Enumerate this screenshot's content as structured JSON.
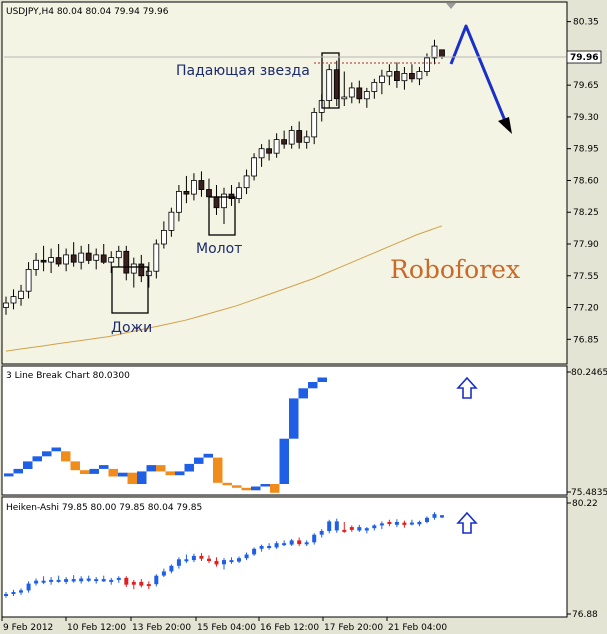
{
  "colors": {
    "background": "#f4f4e4",
    "axis": "#000000",
    "candle_up": "#ffffff",
    "candle_down": "#3a1f1f",
    "moving_average": "#d4a04a",
    "annotation_box": "#000000",
    "annotation_text": "#1c2a6e",
    "brand": "#c96a2a",
    "forecast_arrow": "#1a2fc8",
    "lb_up": "#1f5fe6",
    "lb_down": "#f08c1c",
    "ha_up": "#1f5fe6",
    "ha_down": "#e02020",
    "arrow_outline": "#1a2fc8"
  },
  "chart_data": [
    {
      "type": "candlestick",
      "title": "USDJPY,H4 80.04 80.04 79.94 79.96",
      "ylim": [
        76.6,
        80.5
      ],
      "yticks": [
        "80.35",
        "79.96",
        "79.65",
        "79.30",
        "78.95",
        "78.60",
        "78.25",
        "77.90",
        "77.55",
        "77.20",
        "76.85"
      ],
      "current_price": "79.96",
      "annotations": [
        "Падающая звезда",
        "Молот",
        "Дожи"
      ],
      "watermark": "Roboforex",
      "ohlc": [
        [
          77.2,
          77.32,
          77.12,
          77.25
        ],
        [
          77.25,
          77.4,
          77.18,
          77.32
        ],
        [
          77.3,
          77.45,
          77.22,
          77.38
        ],
        [
          77.38,
          77.7,
          77.3,
          77.62
        ],
        [
          77.62,
          77.8,
          77.55,
          77.72
        ],
        [
          77.72,
          77.88,
          77.6,
          77.7
        ],
        [
          77.7,
          77.85,
          77.58,
          77.75
        ],
        [
          77.75,
          77.9,
          77.65,
          77.68
        ],
        [
          77.68,
          77.85,
          77.6,
          77.78
        ],
        [
          77.78,
          77.92,
          77.65,
          77.7
        ],
        [
          77.7,
          77.88,
          77.62,
          77.8
        ],
        [
          77.8,
          77.9,
          77.68,
          77.72
        ],
        [
          77.72,
          77.85,
          77.62,
          77.78
        ],
        [
          77.78,
          77.9,
          77.68,
          77.7
        ],
        [
          77.7,
          77.82,
          77.58,
          77.75
        ],
        [
          77.75,
          77.88,
          77.65,
          77.82
        ],
        [
          77.82,
          77.88,
          77.5,
          77.58
        ],
        [
          77.58,
          77.75,
          77.42,
          77.68
        ],
        [
          77.68,
          77.78,
          77.48,
          77.55
        ],
        [
          77.55,
          77.7,
          77.42,
          77.6
        ],
        [
          77.6,
          77.95,
          77.52,
          77.9
        ],
        [
          77.9,
          78.15,
          77.85,
          78.05
        ],
        [
          78.05,
          78.3,
          77.98,
          78.25
        ],
        [
          78.25,
          78.55,
          78.15,
          78.48
        ],
        [
          78.48,
          78.65,
          78.35,
          78.45
        ],
        [
          78.45,
          78.68,
          78.38,
          78.6
        ],
        [
          78.6,
          78.7,
          78.42,
          78.5
        ],
        [
          78.5,
          78.62,
          78.35,
          78.42
        ],
        [
          78.42,
          78.55,
          78.22,
          78.3
        ],
        [
          78.3,
          78.52,
          78.12,
          78.45
        ],
        [
          78.45,
          78.55,
          78.32,
          78.4
        ],
        [
          78.4,
          78.58,
          78.35,
          78.52
        ],
        [
          78.52,
          78.72,
          78.45,
          78.65
        ],
        [
          78.65,
          78.9,
          78.6,
          78.85
        ],
        [
          78.85,
          79.0,
          78.75,
          78.95
        ],
        [
          78.95,
          79.05,
          78.82,
          78.9
        ],
        [
          78.9,
          79.12,
          78.85,
          79.05
        ],
        [
          79.05,
          79.15,
          78.95,
          79.0
        ],
        [
          79.0,
          79.2,
          78.95,
          79.15
        ],
        [
          79.15,
          79.25,
          78.95,
          79.02
        ],
        [
          79.02,
          79.15,
          78.95,
          79.08
        ],
        [
          79.08,
          79.4,
          79.0,
          79.35
        ],
        [
          79.35,
          79.55,
          79.25,
          79.48
        ],
        [
          79.48,
          79.88,
          79.4,
          79.82
        ],
        [
          79.82,
          79.92,
          79.42,
          79.5
        ],
        [
          79.5,
          79.8,
          79.42,
          79.52
        ],
        [
          79.52,
          79.68,
          79.45,
          79.62
        ],
        [
          79.62,
          79.7,
          79.45,
          79.5
        ],
        [
          79.5,
          79.62,
          79.4,
          79.58
        ],
        [
          79.58,
          79.72,
          79.5,
          79.68
        ],
        [
          79.68,
          79.82,
          79.55,
          79.75
        ],
        [
          79.75,
          79.88,
          79.65,
          79.8
        ],
        [
          79.8,
          79.9,
          79.62,
          79.7
        ],
        [
          79.7,
          79.85,
          79.6,
          79.78
        ],
        [
          79.78,
          79.88,
          79.68,
          79.72
        ],
        [
          79.72,
          79.85,
          79.65,
          79.8
        ],
        [
          79.8,
          80.0,
          79.75,
          79.95
        ],
        [
          79.95,
          80.15,
          79.88,
          80.08
        ],
        [
          80.04,
          80.04,
          79.94,
          79.96
        ]
      ],
      "moving_average": [
        76.72,
        76.74,
        76.76,
        76.78,
        76.8,
        76.82,
        76.84,
        76.86,
        76.88,
        76.91,
        76.94,
        76.97,
        77.0,
        77.03,
        77.06,
        77.1,
        77.14,
        77.18,
        77.22,
        77.27,
        77.32,
        77.37,
        77.42,
        77.47,
        77.52,
        77.58,
        77.64,
        77.7,
        77.76,
        77.82,
        77.88,
        77.94,
        78.0,
        78.05,
        78.1
      ]
    },
    {
      "type": "line_break",
      "title": "3 Line Break Chart 80.0300",
      "yticks": [
        "80.2465",
        "75.4835"
      ],
      "blocks": [
        {
          "dir": "up",
          "lo": 76.1,
          "hi": 76.22
        },
        {
          "dir": "up",
          "lo": 76.22,
          "hi": 76.4
        },
        {
          "dir": "up",
          "lo": 76.4,
          "hi": 76.7
        },
        {
          "dir": "up",
          "lo": 76.7,
          "hi": 76.9
        },
        {
          "dir": "up",
          "lo": 76.9,
          "hi": 77.1
        },
        {
          "dir": "up",
          "lo": 77.1,
          "hi": 77.25
        },
        {
          "dir": "down",
          "lo": 76.7,
          "hi": 77.1
        },
        {
          "dir": "down",
          "lo": 76.35,
          "hi": 76.7
        },
        {
          "dir": "down",
          "lo": 76.2,
          "hi": 76.35
        },
        {
          "dir": "up",
          "lo": 76.2,
          "hi": 76.4
        },
        {
          "dir": "up",
          "lo": 76.4,
          "hi": 76.55
        },
        {
          "dir": "down",
          "lo": 76.1,
          "hi": 76.4
        },
        {
          "dir": "up",
          "lo": 76.1,
          "hi": 76.25
        },
        {
          "dir": "down",
          "lo": 75.8,
          "hi": 76.25
        },
        {
          "dir": "up",
          "lo": 75.8,
          "hi": 76.3
        },
        {
          "dir": "up",
          "lo": 76.3,
          "hi": 76.55
        },
        {
          "dir": "down",
          "lo": 76.3,
          "hi": 76.55
        },
        {
          "dir": "down",
          "lo": 76.15,
          "hi": 76.3
        },
        {
          "dir": "up",
          "lo": 76.15,
          "hi": 76.3
        },
        {
          "dir": "up",
          "lo": 76.3,
          "hi": 76.6
        },
        {
          "dir": "up",
          "lo": 76.6,
          "hi": 76.85
        },
        {
          "dir": "up",
          "lo": 76.85,
          "hi": 77.0
        },
        {
          "dir": "down",
          "lo": 75.85,
          "hi": 76.85
        },
        {
          "dir": "down",
          "lo": 75.75,
          "hi": 75.85
        },
        {
          "dir": "down",
          "lo": 75.65,
          "hi": 75.75
        },
        {
          "dir": "down",
          "lo": 75.55,
          "hi": 75.65
        },
        {
          "dir": "up",
          "lo": 75.55,
          "hi": 75.7
        },
        {
          "dir": "up",
          "lo": 75.7,
          "hi": 75.8
        },
        {
          "dir": "down",
          "lo": 75.45,
          "hi": 75.8
        },
        {
          "dir": "up",
          "lo": 75.8,
          "hi": 77.6
        },
        {
          "dir": "up",
          "lo": 77.6,
          "hi": 79.2
        },
        {
          "dir": "up",
          "lo": 79.2,
          "hi": 79.6
        },
        {
          "dir": "up",
          "lo": 79.6,
          "hi": 79.85
        },
        {
          "dir": "up",
          "lo": 79.85,
          "hi": 80.03
        }
      ]
    },
    {
      "type": "heiken_ashi",
      "title": "Heiken-Ashi 79.85 80.00 79.85 80.04 79.85",
      "yticks": [
        "80.22",
        "76.88"
      ],
      "x_labels": [
        "9 Feb 2012",
        "10 Feb 12:00",
        "13 Feb 20:00",
        "15 Feb 04:00",
        "16 Feb 12:00",
        "17 Feb 20:00",
        "21 Feb 04:00"
      ],
      "direction": [
        "up",
        "up",
        "up",
        "up",
        "up",
        "up",
        "up",
        "up",
        "up",
        "up",
        "up",
        "up",
        "up",
        "up",
        "up",
        "up",
        "down",
        "down",
        "down",
        "down",
        "up",
        "up",
        "up",
        "up",
        "up",
        "up",
        "down",
        "down",
        "down",
        "up",
        "up",
        "up",
        "up",
        "up",
        "up",
        "up",
        "up",
        "up",
        "up",
        "down",
        "up",
        "up",
        "up",
        "up",
        "up",
        "down",
        "down",
        "up",
        "up",
        "up",
        "up",
        "down",
        "up",
        "down",
        "up",
        "up",
        "up",
        "up",
        "up"
      ]
    }
  ]
}
